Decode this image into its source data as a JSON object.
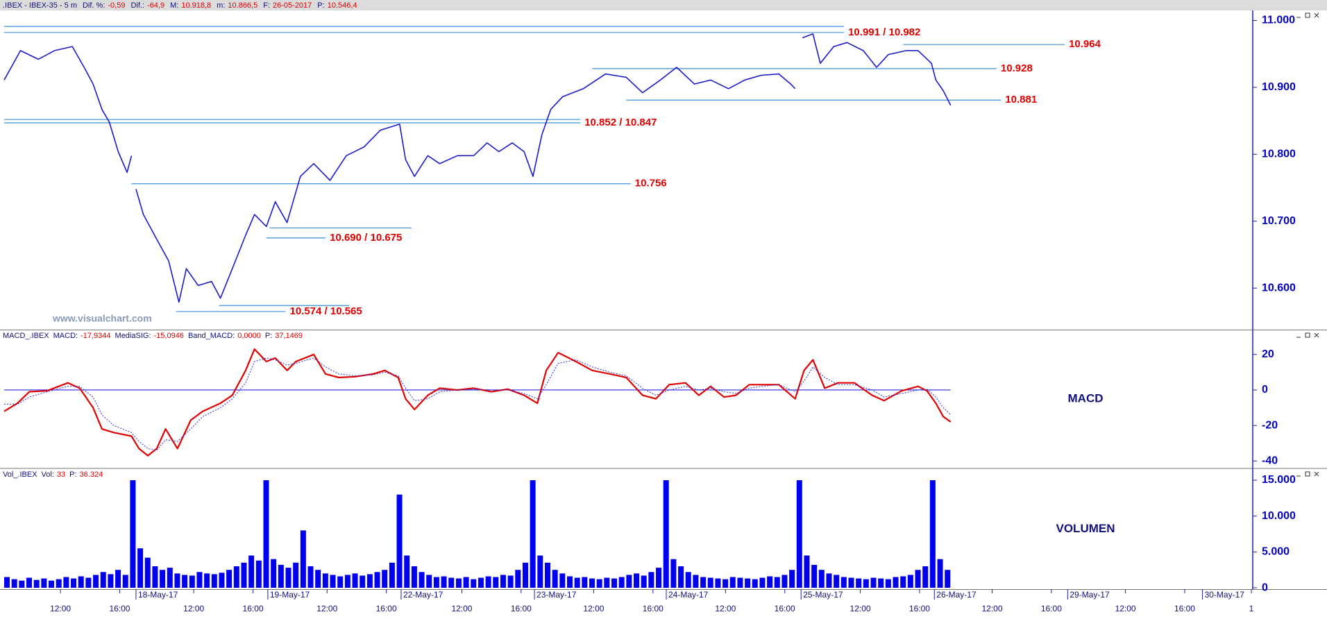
{
  "header": {
    "title": ".IBEX - IBEX-35 -  5 m",
    "fields": [
      {
        "label": "Dif. %:",
        "value": "-0,59"
      },
      {
        "label": "Dif.:",
        "value": "-64,9"
      },
      {
        "label": "M:",
        "value": "10.918,8"
      },
      {
        "label": "m:",
        "value": "10.866,5"
      },
      {
        "label": "F:",
        "value": "26-05-2017"
      },
      {
        "label": "P:",
        "value": "10.546,4"
      }
    ]
  },
  "chart_data": [
    {
      "type": "line",
      "watermark": "www.visualchart.com",
      "color": "#1a1acc",
      "level_color": "#3a8fd8",
      "label_color": "#e00000",
      "xlim": [
        0,
        84.2
      ],
      "ylim": [
        10538,
        11015
      ],
      "yticks": [
        {
          "value": 11000,
          "label": "11.000"
        },
        {
          "value": 10900,
          "label": "10.900"
        },
        {
          "value": 10800,
          "label": "10.800"
        },
        {
          "value": 10700,
          "label": "10.700"
        },
        {
          "value": 10600,
          "label": "10.600"
        }
      ],
      "x": [
        0,
        1.1,
        2.3,
        3.4,
        4.6,
        5.4,
        6.0,
        6.6,
        7.1,
        7.7,
        8.3,
        8.6,
        8.7,
        8.9,
        9.4,
        10.3,
        11.1,
        11.8,
        12.3,
        13.1,
        14.0,
        14.6,
        15.4,
        16.3,
        16.9,
        17.7,
        18.3,
        19.1,
        20.0,
        20.9,
        22.0,
        23.1,
        24.3,
        25.4,
        26.7,
        27.1,
        27.7,
        28.6,
        29.4,
        30.6,
        31.7,
        32.6,
        33.4,
        34.3,
        35.1,
        35.7,
        36.3,
        36.9,
        37.7,
        39.1,
        40.6,
        42.0,
        43.1,
        44.3,
        45.4,
        46.6,
        47.7,
        48.9,
        50.0,
        51.1,
        52.3,
        53.1,
        53.4,
        53.7,
        53.9,
        54.6,
        55.1,
        56.0,
        56.9,
        58.0,
        58.9,
        59.7,
        60.9,
        61.7,
        62.6,
        62.9,
        63.4,
        63.9
      ],
      "values": [
        10911,
        10955,
        10942,
        10955,
        10961,
        10930,
        10905,
        10867,
        10848,
        10804,
        10773,
        10798,
        null,
        10748,
        10710,
        10673,
        10641,
        10579,
        10629,
        10604,
        10610,
        10585,
        10629,
        10679,
        10710,
        10692,
        10729,
        10698,
        10767,
        10786,
        10761,
        10798,
        10811,
        10836,
        10845,
        10792,
        10767,
        10798,
        10786,
        10798,
        10798,
        10817,
        10804,
        10817,
        10804,
        10767,
        10829,
        10867,
        10886,
        10898,
        10920,
        10915,
        10892,
        10911,
        10930,
        10905,
        10911,
        10898,
        10911,
        10918,
        10920,
        10905,
        10898,
        null,
        10974,
        10980,
        10936,
        10961,
        10967,
        10955,
        10930,
        10949,
        10955,
        10955,
        10936,
        10911,
        10895,
        10873
      ],
      "levels": [
        {
          "label": "10.991 / 10.982",
          "lines": [
            {
              "value": 10991,
              "x": [
                0,
                56.7
              ]
            },
            {
              "value": 10982,
              "x": [
                0,
                56.7
              ]
            }
          ]
        },
        {
          "label": "10.964",
          "lines": [
            {
              "value": 10964,
              "x": [
                60.7,
                71.6
              ]
            }
          ]
        },
        {
          "label": "10.928",
          "lines": [
            {
              "value": 10928,
              "x": [
                39.7,
                67.0
              ]
            }
          ]
        },
        {
          "label": "10.881",
          "lines": [
            {
              "value": 10881,
              "x": [
                42.0,
                67.3
              ]
            }
          ]
        },
        {
          "label": "10.852 / 10.847",
          "lines": [
            {
              "value": 10852,
              "x": [
                0,
                38.9
              ]
            },
            {
              "value": 10847,
              "x": [
                0,
                38.9
              ]
            }
          ]
        },
        {
          "label": "10.756",
          "lines": [
            {
              "value": 10756,
              "x": [
                8.6,
                42.3
              ]
            }
          ]
        },
        {
          "label": "10.690 / 10.675",
          "lines": [
            {
              "value": 10690,
              "x": [
                17.9,
                27.5
              ]
            },
            {
              "value": 10675,
              "x": [
                17.7,
                21.7
              ]
            }
          ]
        },
        {
          "label": "10.574 / 10.565",
          "lines": [
            {
              "value": 10574,
              "x": [
                14.5,
                23.3
              ]
            },
            {
              "value": 10565,
              "x": [
                11.6,
                19.0
              ]
            }
          ]
        }
      ]
    },
    {
      "type": "line",
      "name": "MACD_.IBEX",
      "label": "MACD",
      "fields": [
        {
          "label": "MACD:",
          "value": "-17,9344"
        },
        {
          "label": "MediaSIG:",
          "value": "-15,0946"
        },
        {
          "label": "Band_MACD:",
          "value": "0,0000"
        },
        {
          "label": "P:",
          "value": "37,1469"
        }
      ],
      "xlim": [
        0,
        84.2
      ],
      "ylim": [
        -43.8,
        33.6
      ],
      "yticks": [
        20,
        0,
        -20,
        -40
      ],
      "band_color": "#2a2ae0",
      "x": [
        0,
        0.9,
        1.7,
        2.9,
        4.3,
        5.1,
        6.0,
        6.6,
        7.4,
        8.6,
        9.1,
        9.7,
        10.3,
        10.9,
        11.7,
        12.6,
        13.4,
        14.6,
        15.4,
        16.3,
        16.9,
        17.7,
        18.3,
        19.1,
        19.7,
        20.9,
        21.7,
        22.6,
        23.7,
        24.9,
        25.7,
        26.6,
        27.1,
        27.7,
        28.6,
        29.4,
        30.6,
        31.7,
        32.9,
        34.0,
        35.1,
        36.0,
        36.6,
        37.4,
        38.6,
        39.7,
        40.9,
        42.0,
        43.1,
        44.0,
        44.9,
        46.0,
        46.9,
        47.7,
        48.6,
        49.4,
        50.3,
        51.1,
        52.3,
        53.4,
        54.0,
        54.6,
        55.4,
        56.3,
        57.4,
        58.6,
        59.4,
        60.6,
        61.7,
        62.3,
        62.9,
        63.4,
        63.9
      ],
      "series": [
        {
          "color": "#e00000",
          "values": [
            -12,
            -7.5,
            -1,
            -0.5,
            4,
            1,
            -10,
            -22,
            -24,
            -26,
            -33,
            -37,
            -33,
            -22,
            -33,
            -17,
            -12,
            -7.5,
            -3,
            11,
            23,
            16,
            18,
            11,
            16,
            20,
            9,
            7,
            7.5,
            9,
            11,
            7,
            -5,
            -11,
            -3,
            1,
            0,
            1,
            -1,
            0.5,
            -3,
            -7.5,
            11,
            21,
            16,
            11,
            9,
            7,
            -3,
            -5,
            3,
            4,
            -3,
            2,
            -4,
            -3,
            3,
            3,
            3,
            -5,
            11,
            17,
            1,
            4,
            4,
            -3,
            -6,
            -0.5,
            2,
            -0.5,
            -7.5,
            -15,
            -18
          ]
        },
        {
          "color": "#2a2ae0",
          "dashed": true,
          "values": [
            -8,
            -8,
            -4,
            -1,
            2,
            2,
            -4,
            -14,
            -20,
            -24,
            -29,
            -33,
            -34,
            -28,
            -29,
            -22,
            -15,
            -10,
            -5,
            4,
            16,
            18,
            17,
            14,
            15,
            18,
            13,
            9,
            8,
            8.5,
            10,
            8,
            1,
            -6,
            -5,
            -1,
            0,
            0.5,
            0,
            0,
            -2,
            -5,
            3,
            15,
            17,
            13,
            10,
            8,
            1,
            -3,
            0,
            2,
            0,
            1,
            -1,
            -2,
            1,
            2,
            3,
            -1,
            5,
            13,
            7,
            3,
            3,
            0,
            -4,
            -2,
            0,
            0.5,
            -4,
            -10,
            -14
          ]
        }
      ]
    },
    {
      "type": "bar",
      "name": "Vol_.IBEX",
      "label": "VOLUMEN",
      "color": "#0000ee",
      "fields": [
        {
          "label": "Vol:",
          "value": "33"
        },
        {
          "label": "P:",
          "value": "36.324"
        }
      ],
      "xlim": [
        0,
        84.2
      ],
      "ylim": [
        -190,
        16550
      ],
      "yticks": [
        {
          "value": 15000,
          "label": "15.000"
        },
        {
          "value": 10000,
          "label": "10.000"
        },
        {
          "value": 5000,
          "label": "5.000"
        },
        0
      ],
      "xticks": [
        {
          "value": 3.8,
          "label": "12:00"
        },
        {
          "value": 7.8,
          "label": "16:00"
        },
        {
          "value": 12.8,
          "label": "12:00"
        },
        {
          "value": 16.8,
          "label": "16:00"
        },
        {
          "value": 21.8,
          "label": "12:00"
        },
        {
          "value": 25.8,
          "label": "16:00"
        },
        {
          "value": 30.9,
          "label": "12:00"
        },
        {
          "value": 34.9,
          "label": "16:00"
        },
        {
          "value": 39.8,
          "label": "12:00"
        },
        {
          "value": 43.8,
          "label": "16:00"
        },
        {
          "value": 48.7,
          "label": "12:00"
        },
        {
          "value": 52.7,
          "label": "16:00"
        },
        {
          "value": 57.8,
          "label": "12:00"
        },
        {
          "value": 61.8,
          "label": "16:00"
        },
        {
          "value": 66.7,
          "label": "12:00"
        },
        {
          "value": 70.7,
          "label": "16:00"
        },
        {
          "value": 75.7,
          "label": "12:00"
        },
        {
          "value": 79.7,
          "label": "16:00"
        },
        {
          "value": 84.2,
          "label": "1"
        }
      ],
      "date_ticks": [
        {
          "value": 8.9,
          "label": "18-May-17"
        },
        {
          "value": 17.8,
          "label": "19-May-17"
        },
        {
          "value": 26.8,
          "label": "22-May-17"
        },
        {
          "value": 35.8,
          "label": "23-May-17"
        },
        {
          "value": 44.7,
          "label": "24-May-17"
        },
        {
          "value": 53.8,
          "label": "25-May-17"
        },
        {
          "value": 62.8,
          "label": "26-May-17"
        },
        {
          "value": 71.8,
          "label": "29-May-17"
        },
        {
          "value": 80.9,
          "label": "30-May-17"
        }
      ],
      "x": [
        0,
        0.5,
        1,
        1.5,
        2,
        2.5,
        3,
        3.5,
        4,
        4.5,
        5,
        5.5,
        6,
        6.5,
        7,
        7.5,
        8,
        8.5,
        9,
        9.5,
        10,
        10.5,
        11,
        11.5,
        12,
        12.5,
        13,
        13.5,
        14,
        14.5,
        15,
        15.5,
        16,
        16.5,
        17,
        17.5,
        18,
        18.5,
        19,
        19.5,
        20,
        20.5,
        21,
        21.5,
        22,
        22.5,
        23,
        23.5,
        24,
        24.5,
        25,
        25.5,
        26,
        26.5,
        27,
        27.5,
        28,
        28.5,
        29,
        29.5,
        30,
        30.5,
        31,
        31.5,
        32,
        32.5,
        33,
        33.5,
        34,
        34.5,
        35,
        35.5,
        36,
        36.5,
        37,
        37.5,
        38,
        38.5,
        39,
        39.5,
        40,
        40.5,
        41,
        41.5,
        42,
        42.5,
        43,
        43.5,
        44,
        44.5,
        45,
        45.5,
        46,
        46.5,
        47,
        47.5,
        48,
        48.5,
        49,
        49.5,
        50,
        50.5,
        51,
        51.5,
        52,
        52.5,
        53,
        53.5,
        54,
        54.5,
        55,
        55.5,
        56,
        56.5,
        57,
        57.5,
        58,
        58.5,
        59,
        59.5,
        60,
        60.5,
        61,
        61.5,
        62,
        62.5,
        63,
        63.5
      ],
      "values": [
        1500,
        1200,
        1000,
        1400,
        1100,
        1300,
        1000,
        1200,
        1500,
        1300,
        1600,
        1400,
        1800,
        2200,
        1900,
        2500,
        1800,
        15000,
        5500,
        4200,
        3000,
        2500,
        2800,
        2000,
        1800,
        1700,
        2200,
        2000,
        1900,
        2100,
        2500,
        3000,
        3500,
        4500,
        3800,
        15000,
        4000,
        3200,
        2800,
        3500,
        8000,
        3000,
        2500,
        2000,
        1800,
        1600,
        1800,
        2000,
        1700,
        1900,
        2200,
        2500,
        3500,
        13000,
        4500,
        3000,
        2200,
        1800,
        1500,
        1600,
        1400,
        1300,
        1500,
        1200,
        1400,
        1600,
        1500,
        1800,
        1700,
        2500,
        3500,
        15000,
        4500,
        3500,
        2500,
        2000,
        1600,
        1400,
        1500,
        1300,
        1200,
        1400,
        1300,
        1500,
        1800,
        2000,
        1700,
        2200,
        2800,
        15000,
        4000,
        3000,
        2200,
        1800,
        1500,
        1400,
        1300,
        1200,
        1500,
        1400,
        1300,
        1200,
        1400,
        1600,
        1500,
        1800,
        2500,
        15000,
        4500,
        3200,
        2500,
        2000,
        1800,
        1500,
        1400,
        1300,
        1200,
        1400,
        1300,
        1200,
        1500,
        1600,
        1800,
        2500,
        3000,
        15000,
        4000,
        2500
      ]
    }
  ]
}
